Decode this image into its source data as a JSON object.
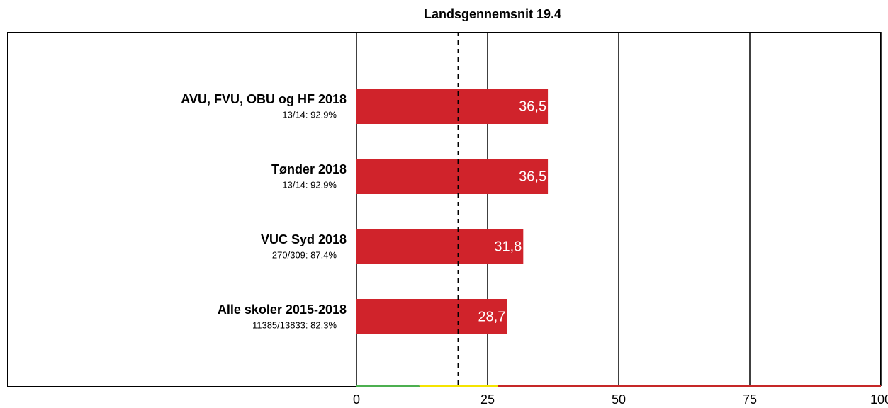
{
  "chart_data": {
    "type": "hbar",
    "title": "Landsgennemsnit 19.4",
    "categories": [
      "AVU, FVU, OBU og HF 2018",
      "Tønder 2018",
      "VUC Syd 2018",
      "Alle skoler 2015-2018"
    ],
    "category_notes": [
      "13/14: 92.9%",
      "13/14: 92.9%",
      "270/309: 87.4%",
      "11385/13833: 82.3%"
    ],
    "values": [
      36.5,
      36.5,
      31.8,
      28.7
    ],
    "value_labels": [
      "36,5",
      "36,5",
      "31,8",
      "28,7"
    ],
    "color": "#d0232b",
    "reference": 19.4,
    "bands": [
      {
        "from": 0,
        "to": 12,
        "color": "#4caf50"
      },
      {
        "from": 12,
        "to": 27,
        "color": "#f5e400"
      },
      {
        "from": 27,
        "to": 100,
        "color": "#c62828"
      }
    ],
    "xlim": [
      0,
      100
    ],
    "xticks": [
      0,
      25,
      50,
      75,
      100
    ],
    "grid": true
  }
}
